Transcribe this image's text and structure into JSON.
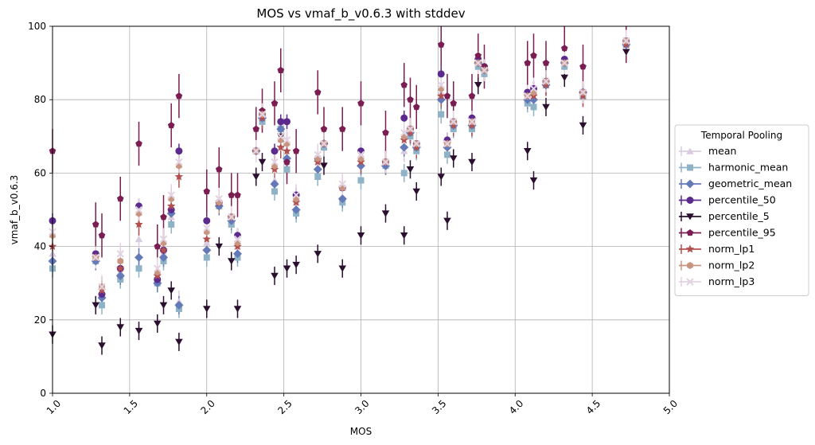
{
  "chart_data": {
    "type": "scatter",
    "title": "MOS vs vmaf_b_v0.6.3 with stddev",
    "xlabel": "MOS",
    "ylabel": "vmaf_b_v0.6.3",
    "xlim": [
      1.0,
      5.0
    ],
    "ylim": [
      0,
      100
    ],
    "xticks": [
      "1.0",
      "1.5",
      "2.0",
      "2.5",
      "3.0",
      "3.5",
      "4.0",
      "4.5",
      "5.0"
    ],
    "yticks": [
      "0",
      "20",
      "40",
      "60",
      "80",
      "100"
    ],
    "grid": true,
    "legend": {
      "title": "Temporal Pooling",
      "placement": "outside-right"
    },
    "x": [
      1.0,
      1.28,
      1.32,
      1.44,
      1.56,
      1.68,
      1.72,
      1.77,
      1.82,
      2.0,
      2.08,
      2.16,
      2.2,
      2.32,
      2.36,
      2.44,
      2.48,
      2.52,
      2.58,
      2.72,
      2.76,
      2.88,
      3.0,
      3.16,
      3.28,
      3.32,
      3.36,
      3.52,
      3.56,
      3.6,
      3.72,
      3.76,
      3.8,
      4.08,
      4.12,
      4.2,
      4.32,
      4.44,
      4.72
    ],
    "series": [
      {
        "name": "mean",
        "color": "#d9cce0",
        "marker": "triangle-up",
        "values": [
          38,
          37,
          27,
          33,
          42,
          32,
          38,
          48,
          25,
          41,
          52,
          47,
          40,
          66,
          75,
          58,
          73,
          63,
          52,
          63,
          68,
          56,
          65,
          63,
          66,
          71,
          68,
          82,
          68,
          73,
          73,
          90,
          88,
          80,
          82,
          84,
          90,
          81,
          95
        ]
      },
      {
        "name": "harmonic_mean",
        "color": "#8fb3c6",
        "marker": "square",
        "values": [
          34,
          36,
          24,
          31,
          34,
          30,
          36,
          46,
          23,
          37,
          51,
          46,
          37,
          66,
          74,
          55,
          72,
          61,
          49,
          59,
          67,
          52,
          58,
          62,
          60,
          70,
          66,
          76,
          65,
          72,
          72,
          89,
          87,
          79,
          78,
          84,
          89,
          81,
          95
        ]
      },
      {
        "name": "geometric_mean",
        "color": "#6479b8",
        "marker": "diamond",
        "values": [
          36,
          36,
          26,
          32,
          37,
          30,
          37,
          49,
          24,
          39,
          51,
          47,
          38,
          66,
          75,
          57,
          72,
          64,
          50,
          61,
          68,
          53,
          62,
          62,
          67,
          71,
          67,
          80,
          67,
          73,
          73,
          90,
          88,
          80,
          80,
          84,
          90,
          82,
          95
        ]
      },
      {
        "name": "percentile_50",
        "color": "#5b2a8c",
        "marker": "circle",
        "values": [
          47,
          38,
          27,
          34,
          51,
          31,
          39,
          50,
          66,
          47,
          52,
          48,
          43,
          66,
          76,
          66,
          74,
          74,
          54,
          64,
          68,
          56,
          66,
          63,
          75,
          72,
          68,
          87,
          69,
          74,
          75,
          91,
          89,
          82,
          83,
          85,
          91,
          82,
          96
        ]
      },
      {
        "name": "percentile_5",
        "color": "#2a0f2e",
        "marker": "triangle-down",
        "values": [
          16,
          24,
          13,
          18,
          17,
          19,
          24,
          28,
          14,
          23,
          40,
          36,
          23,
          59,
          63,
          32,
          70,
          34,
          35,
          38,
          62,
          34,
          43,
          49,
          43,
          61,
          55,
          59,
          47,
          64,
          63,
          84,
          88,
          66,
          58,
          78,
          86,
          73,
          93
        ]
      },
      {
        "name": "percentile_95",
        "color": "#7a1d52",
        "marker": "pentagon",
        "values": [
          66,
          46,
          43,
          53,
          68,
          40,
          48,
          73,
          81,
          55,
          61,
          54,
          54,
          72,
          77,
          79,
          88,
          63,
          66,
          82,
          72,
          72,
          79,
          71,
          84,
          80,
          78,
          95,
          81,
          79,
          81,
          92,
          89,
          90,
          92,
          90,
          94,
          89,
          96
        ]
      },
      {
        "name": "norm_lp1",
        "color": "#b44f4f",
        "marker": "star",
        "values": [
          40,
          37,
          28,
          34,
          46,
          32,
          39,
          51,
          59,
          42,
          52,
          48,
          40,
          66,
          75,
          61,
          67,
          66,
          52,
          63,
          68,
          56,
          63,
          63,
          69,
          71,
          67,
          81,
          68,
          73,
          73,
          90,
          88,
          81,
          81,
          84,
          90,
          81,
          95
        ]
      },
      {
        "name": "norm_lp2",
        "color": "#c89680",
        "marker": "hexagon",
        "values": [
          43,
          37,
          29,
          36,
          49,
          33,
          41,
          53,
          62,
          44,
          52,
          48,
          41,
          66,
          76,
          62,
          69,
          68,
          53,
          64,
          68,
          56,
          64,
          63,
          70,
          72,
          68,
          83,
          68,
          74,
          74,
          90,
          88,
          81,
          82,
          85,
          90,
          82,
          96
        ]
      },
      {
        "name": "norm_lp3",
        "color": "#e3d2e2",
        "marker": "x",
        "values": [
          44,
          37,
          29,
          38,
          50,
          34,
          42,
          54,
          63,
          45,
          53,
          48,
          42,
          66,
          76,
          63,
          70,
          69,
          54,
          65,
          68,
          57,
          65,
          63,
          71,
          72,
          68,
          84,
          68,
          74,
          74,
          90,
          88,
          81,
          83,
          85,
          90,
          82,
          96
        ]
      }
    ],
    "stddev": {
      "mean": 3,
      "harmonic_mean": 2.5,
      "geometric_mean": 2.5,
      "percentile_50": 2,
      "percentile_5": 2.5,
      "percentile_95": 6,
      "norm_lp1": 3,
      "norm_lp2": 3,
      "norm_lp3": 3
    }
  }
}
